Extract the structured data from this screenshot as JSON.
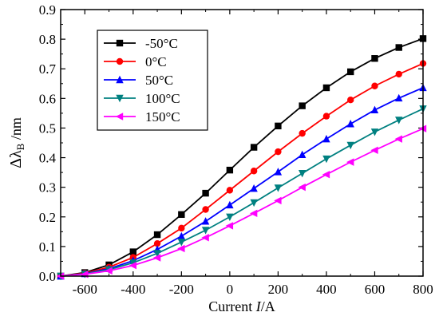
{
  "chart_data": {
    "type": "line",
    "xlabel": "Current I/A",
    "xlabel_parts": {
      "pre": "Current ",
      "italic": "I",
      "post": "/A"
    },
    "ylabel": "Δλ_B /nm",
    "ylabel_parts": {
      "delta": "Δλ",
      "sub": "B",
      "post": " /nm"
    },
    "xlim": [
      -700,
      800
    ],
    "ylim": [
      0,
      0.9
    ],
    "xticks": [
      -600,
      -400,
      -200,
      0,
      200,
      400,
      600,
      800
    ],
    "yticks": [
      0.0,
      0.1,
      0.2,
      0.3,
      0.4,
      0.5,
      0.6,
      0.7,
      0.8,
      0.9
    ],
    "grid": false,
    "legend_position": "top-left",
    "x": [
      -700,
      -600,
      -500,
      -400,
      -300,
      -200,
      -100,
      0,
      100,
      200,
      300,
      400,
      500,
      600,
      700,
      800
    ],
    "series": [
      {
        "name": "-50°C",
        "color": "#000000",
        "marker": "square",
        "values": [
          0.0,
          0.012,
          0.038,
          0.082,
          0.14,
          0.208,
          0.28,
          0.358,
          0.435,
          0.507,
          0.575,
          0.636,
          0.69,
          0.735,
          0.772,
          0.802
        ]
      },
      {
        "name": "0°C",
        "color": "#ff0000",
        "marker": "circle",
        "values": [
          0.0,
          0.01,
          0.03,
          0.063,
          0.11,
          0.162,
          0.225,
          0.29,
          0.355,
          0.42,
          0.482,
          0.54,
          0.595,
          0.642,
          0.682,
          0.718
        ]
      },
      {
        "name": "50°C",
        "color": "#0000ff",
        "marker": "triangle-up",
        "values": [
          0.0,
          0.008,
          0.025,
          0.052,
          0.09,
          0.135,
          0.185,
          0.24,
          0.296,
          0.352,
          0.41,
          0.463,
          0.514,
          0.561,
          0.601,
          0.636
        ]
      },
      {
        "name": "100°C",
        "color": "#008080",
        "marker": "triangle-down",
        "values": [
          0.0,
          0.007,
          0.022,
          0.045,
          0.077,
          0.115,
          0.155,
          0.2,
          0.248,
          0.298,
          0.347,
          0.396,
          0.442,
          0.487,
          0.527,
          0.565
        ]
      },
      {
        "name": "150°C",
        "color": "#ff00ff",
        "marker": "triangle-left",
        "values": [
          0.0,
          0.006,
          0.018,
          0.036,
          0.062,
          0.093,
          0.13,
          0.17,
          0.212,
          0.255,
          0.3,
          0.343,
          0.385,
          0.425,
          0.463,
          0.498
        ]
      }
    ]
  }
}
